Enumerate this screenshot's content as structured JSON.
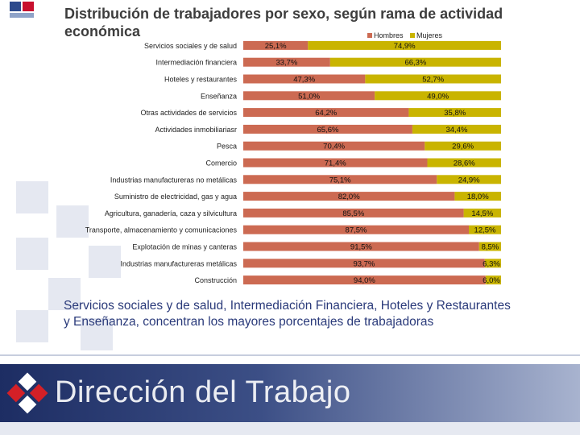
{
  "slide": {
    "title": "Distribución de trabajadores por  sexo, según rama de actividad económica",
    "summary": "Servicios sociales y de salud, Intermediación Financiera, Hoteles y Restaurantes y Enseñanza, concentran los mayores porcentajes de trabajadoras",
    "footer_brand": "Dirección del Trabajo"
  },
  "colors": {
    "hombres": "#cc6a52",
    "mujeres": "#c9b400",
    "label_text": "#222222"
  },
  "chart_data": {
    "type": "bar",
    "orientation": "horizontal",
    "stacked": true,
    "title": "Distribución de trabajadores por  sexo, según rama de actividad económica",
    "legend_position": "top-right",
    "xlim": [
      0,
      100
    ],
    "categories": [
      "Servicios sociales y de salud",
      "Intermediación financiera",
      "Hoteles y restaurantes",
      "Enseñanza",
      "Otras actividades de servicios",
      "Actividades inmobiliariasr",
      "Pesca",
      "Comercio",
      "Industrias manufactureras no metálicas",
      "Suministro de electricidad, gas y agua",
      "Agricultura, ganadería, caza y silvicultura",
      "Transporte, almacenamiento y comunicaciones",
      "Explotación de minas y canteras",
      "Industrias manufactureras metálicas",
      "Construcción"
    ],
    "series": [
      {
        "name": "Hombres",
        "values": [
          25.1,
          33.7,
          47.3,
          51.0,
          64.2,
          65.6,
          70.4,
          71.4,
          75.1,
          82.0,
          85.5,
          87.5,
          91.5,
          93.7,
          94.0
        ],
        "labels": [
          "25,1%",
          "33,7%",
          "47,3%",
          "51,0%",
          "64,2%",
          "65,6%",
          "70,4%",
          "71,4%",
          "75,1%",
          "82,0%",
          "85,5%",
          "87,5%",
          "91,5%",
          "93,7%",
          "94,0%"
        ]
      },
      {
        "name": "Mujeres",
        "values": [
          74.9,
          66.3,
          52.7,
          49.0,
          35.8,
          34.4,
          29.6,
          28.6,
          24.9,
          18.0,
          14.5,
          12.5,
          8.5,
          6.3,
          6.0
        ],
        "labels": [
          "74,9%",
          "66,3%",
          "52,7%",
          "49,0%",
          "35,8%",
          "34,4%",
          "29,6%",
          "28,6%",
          "24,9%",
          "18,0%",
          "14,5%",
          "12,5%",
          "8,5%",
          "6,3%",
          "6,0%"
        ]
      }
    ]
  }
}
